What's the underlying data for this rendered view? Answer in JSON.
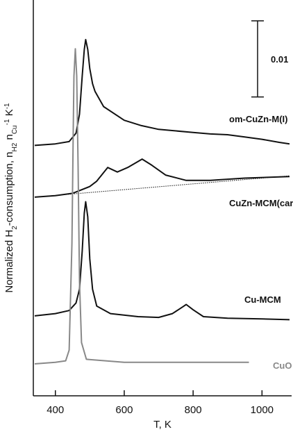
{
  "chart_data": {
    "type": "line",
    "xlabel": "T, K",
    "ylabel_parts": [
      {
        "text": "Normalized H",
        "shift": "normal"
      },
      {
        "text": "2",
        "shift": "sub"
      },
      {
        "text": "-consumption, n",
        "shift": "normal"
      },
      {
        "text": "H2",
        "shift": "sub"
      },
      {
        "text": " n",
        "shift": "normal"
      },
      {
        "text": "Cu",
        "shift": "sub"
      },
      {
        "text": "-1",
        "shift": "super"
      },
      {
        "text": " K",
        "shift": "normal"
      },
      {
        "text": "-1",
        "shift": "super"
      }
    ],
    "xlim": [
      336,
      1086
    ],
    "xticks": [
      400,
      600,
      800,
      1000
    ],
    "ylim": [
      0,
      0.052
    ],
    "scale_bar": 0.01,
    "series": [
      {
        "name": "om-CuZn-M(I)",
        "color": "#111111",
        "x": [
          340,
          400,
          440,
          460,
          470,
          478,
          484,
          488,
          494,
          500,
          508,
          515,
          540,
          600,
          650,
          700,
          800,
          850,
          900,
          950,
          1000,
          1050,
          1080
        ],
        "values": [
          0.0329,
          0.0331,
          0.0334,
          0.0345,
          0.037,
          0.042,
          0.0455,
          0.0468,
          0.0455,
          0.043,
          0.041,
          0.04,
          0.038,
          0.0362,
          0.0355,
          0.035,
          0.0346,
          0.0344,
          0.0343,
          0.034,
          0.0337,
          0.0333,
          0.0331
        ]
      },
      {
        "name": "CuZn-MCM(carb)",
        "color": "#111111",
        "x": [
          340,
          400,
          450,
          500,
          520,
          552,
          580,
          610,
          652,
          680,
          720,
          780,
          850,
          950,
          1080
        ],
        "values": [
          0.0261,
          0.0263,
          0.0266,
          0.0275,
          0.0282,
          0.03,
          0.0294,
          0.03,
          0.0311,
          0.0303,
          0.029,
          0.0283,
          0.0283,
          0.0286,
          0.0288
        ]
      },
      {
        "name": "Cu-MCM",
        "color": "#111111",
        "x": [
          340,
          400,
          440,
          460,
          470,
          478,
          484,
          488,
          494,
          500,
          508,
          520,
          560,
          640,
          700,
          740,
          770,
          780,
          800,
          830,
          900,
          1000,
          1080
        ],
        "values": [
          0.0105,
          0.0108,
          0.0112,
          0.0122,
          0.014,
          0.019,
          0.024,
          0.0255,
          0.0235,
          0.018,
          0.014,
          0.0118,
          0.0108,
          0.0104,
          0.0103,
          0.0108,
          0.0117,
          0.012,
          0.0113,
          0.0104,
          0.0102,
          0.0101,
          0.01
        ]
      },
      {
        "name": "CuO",
        "color": "#888888",
        "x": [
          340,
          400,
          430,
          440,
          448,
          452,
          454,
          458,
          462,
          466,
          470,
          476,
          490,
          600,
          700,
          800,
          962
        ],
        "values": [
          0.0042,
          0.0044,
          0.0046,
          0.006,
          0.02,
          0.035,
          0.042,
          0.0456,
          0.042,
          0.03,
          0.015,
          0.007,
          0.0048,
          0.0044,
          0.0044,
          0.0044,
          0.0044
        ]
      }
    ],
    "baseline": {
      "series_index": 1,
      "x": [
        340,
        1080
      ],
      "values": [
        0.0261,
        0.0289
      ]
    }
  }
}
